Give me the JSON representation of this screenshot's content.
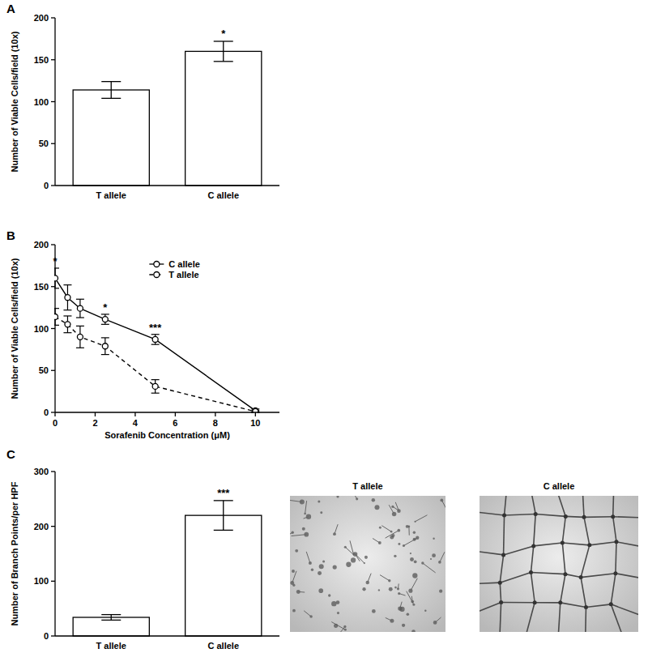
{
  "chart_data": [
    {
      "type": "bar",
      "title": "A",
      "categories": [
        "T allele",
        "C allele"
      ],
      "values": [
        114,
        160
      ],
      "errors": [
        10,
        12
      ],
      "color": "#ffffff",
      "ylabel": "Number of Viable Cells/field (10x)",
      "ylim": [
        0,
        200
      ],
      "yticks": [
        0,
        50,
        100,
        150,
        200
      ],
      "annotations": [
        {
          "text": "*",
          "category": "C allele"
        }
      ]
    },
    {
      "type": "line",
      "title": "B",
      "x": [
        0,
        0.625,
        1.25,
        2.5,
        5,
        10
      ],
      "series": [
        {
          "name": "C allele",
          "color": "#000000",
          "line_style": "solid",
          "marker": "circle",
          "values": [
            160,
            137,
            124,
            111,
            87,
            2
          ],
          "errors": [
            12,
            15,
            11,
            6,
            6,
            2
          ]
        },
        {
          "name": "T allele",
          "color": "#000000",
          "line_style": "dashed",
          "marker": "circle",
          "values": [
            114,
            105,
            90,
            79,
            31,
            1
          ],
          "errors": [
            10,
            10,
            13,
            10,
            8,
            1
          ]
        }
      ],
      "xlabel": "Sorafenib Concentration (μM)",
      "ylabel": "Number of Viable Cells/field (10x)",
      "xlim": [
        0,
        11.2
      ],
      "xticks": [
        0,
        2,
        4,
        6,
        8,
        10
      ],
      "ylim": [
        0,
        200
      ],
      "yticks": [
        0,
        50,
        100,
        150,
        200
      ],
      "legend": "top",
      "annotations": [
        {
          "text": "*",
          "x": 0
        },
        {
          "text": "*",
          "x": 2.5
        },
        {
          "text": "***",
          "x": 5
        }
      ]
    },
    {
      "type": "bar",
      "title": "C",
      "categories": [
        "T allele",
        "C allele"
      ],
      "values": [
        34,
        220
      ],
      "errors": [
        5,
        27
      ],
      "color": "#ffffff",
      "ylabel": "Number of Branch Points/per HPF",
      "ylim": [
        0,
        300
      ],
      "yticks": [
        0,
        100,
        200,
        300
      ],
      "annotations": [
        {
          "text": "***",
          "category": "C allele"
        }
      ]
    }
  ],
  "images": [
    {
      "title": "T allele"
    },
    {
      "title": "C allele"
    }
  ]
}
